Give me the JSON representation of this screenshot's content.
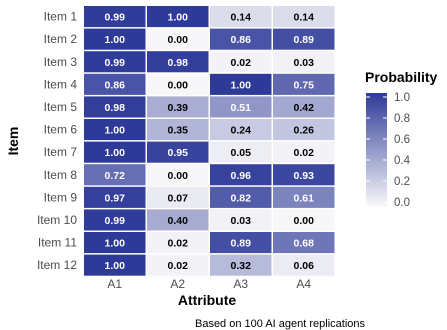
{
  "chart_data": {
    "type": "heatmap",
    "title": "",
    "xlabel": "Attribute",
    "ylabel": "Item",
    "caption": "Based on 100 AI agent replications",
    "columns": [
      "A1",
      "A2",
      "A3",
      "A4"
    ],
    "rows": [
      "Item 1",
      "Item 2",
      "Item 3",
      "Item 4",
      "Item 5",
      "Item 6",
      "Item 7",
      "Item 8",
      "Item 9",
      "Item 10",
      "Item 11",
      "Item 12"
    ],
    "values": [
      [
        0.99,
        1.0,
        0.14,
        0.14
      ],
      [
        1.0,
        0.0,
        0.86,
        0.89
      ],
      [
        0.99,
        0.98,
        0.02,
        0.03
      ],
      [
        0.86,
        0.0,
        1.0,
        0.75
      ],
      [
        0.98,
        0.39,
        0.51,
        0.42
      ],
      [
        1.0,
        0.35,
        0.24,
        0.26
      ],
      [
        1.0,
        0.95,
        0.05,
        0.02
      ],
      [
        0.72,
        0.0,
        0.96,
        0.93
      ],
      [
        0.97,
        0.07,
        0.82,
        0.61
      ],
      [
        0.99,
        0.4,
        0.03,
        0.0
      ],
      [
        1.0,
        0.02,
        0.89,
        0.68
      ],
      [
        1.0,
        0.02,
        0.32,
        0.06
      ]
    ],
    "legend": {
      "title": "Probability",
      "ticks": [
        "1.0",
        "0.8",
        "0.6",
        "0.4",
        "0.2",
        "0.0"
      ],
      "range": [
        0,
        1
      ],
      "low_color": "#f7f7f9",
      "high_color": "#2e3a98",
      "placement": "right"
    },
    "grid": false
  }
}
